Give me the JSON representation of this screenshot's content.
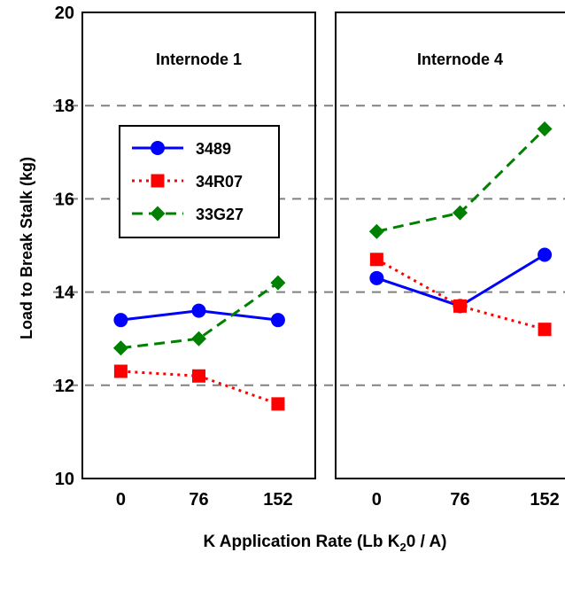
{
  "chart_data": {
    "type": "line",
    "xlabel": "K Application Rate (Lb K",
    "xlabel_sub": "2",
    "xlabel_tail": "0 / A)",
    "ylabel": "Load to Break Stalk (kg)",
    "ylim": [
      10,
      20
    ],
    "yticks": [
      "10",
      "12",
      "14",
      "16",
      "18",
      "20"
    ],
    "categories": [
      "0",
      "76",
      "152"
    ],
    "grid": "dashed horizontal at 12, 14, 16, 18",
    "legend_position": "upper-left of first panel",
    "colors": {
      "3489": "#0000ff",
      "34R07": "#ff0000",
      "33G27": "#008000"
    },
    "panels": [
      {
        "title": "Internode 1",
        "series": [
          {
            "name": "3489",
            "values": [
              13.4,
              13.6,
              13.4
            ]
          },
          {
            "name": "34R07",
            "values": [
              12.3,
              12.2,
              11.6
            ]
          },
          {
            "name": "33G27",
            "values": [
              12.8,
              13.0,
              14.2
            ]
          }
        ]
      },
      {
        "title": "Internode 4",
        "series": [
          {
            "name": "3489",
            "values": [
              14.3,
              13.7,
              14.8
            ]
          },
          {
            "name": "34R07",
            "values": [
              14.7,
              13.7,
              13.2
            ]
          },
          {
            "name": "33G27",
            "values": [
              15.3,
              15.7,
              17.5
            ]
          }
        ]
      }
    ]
  }
}
